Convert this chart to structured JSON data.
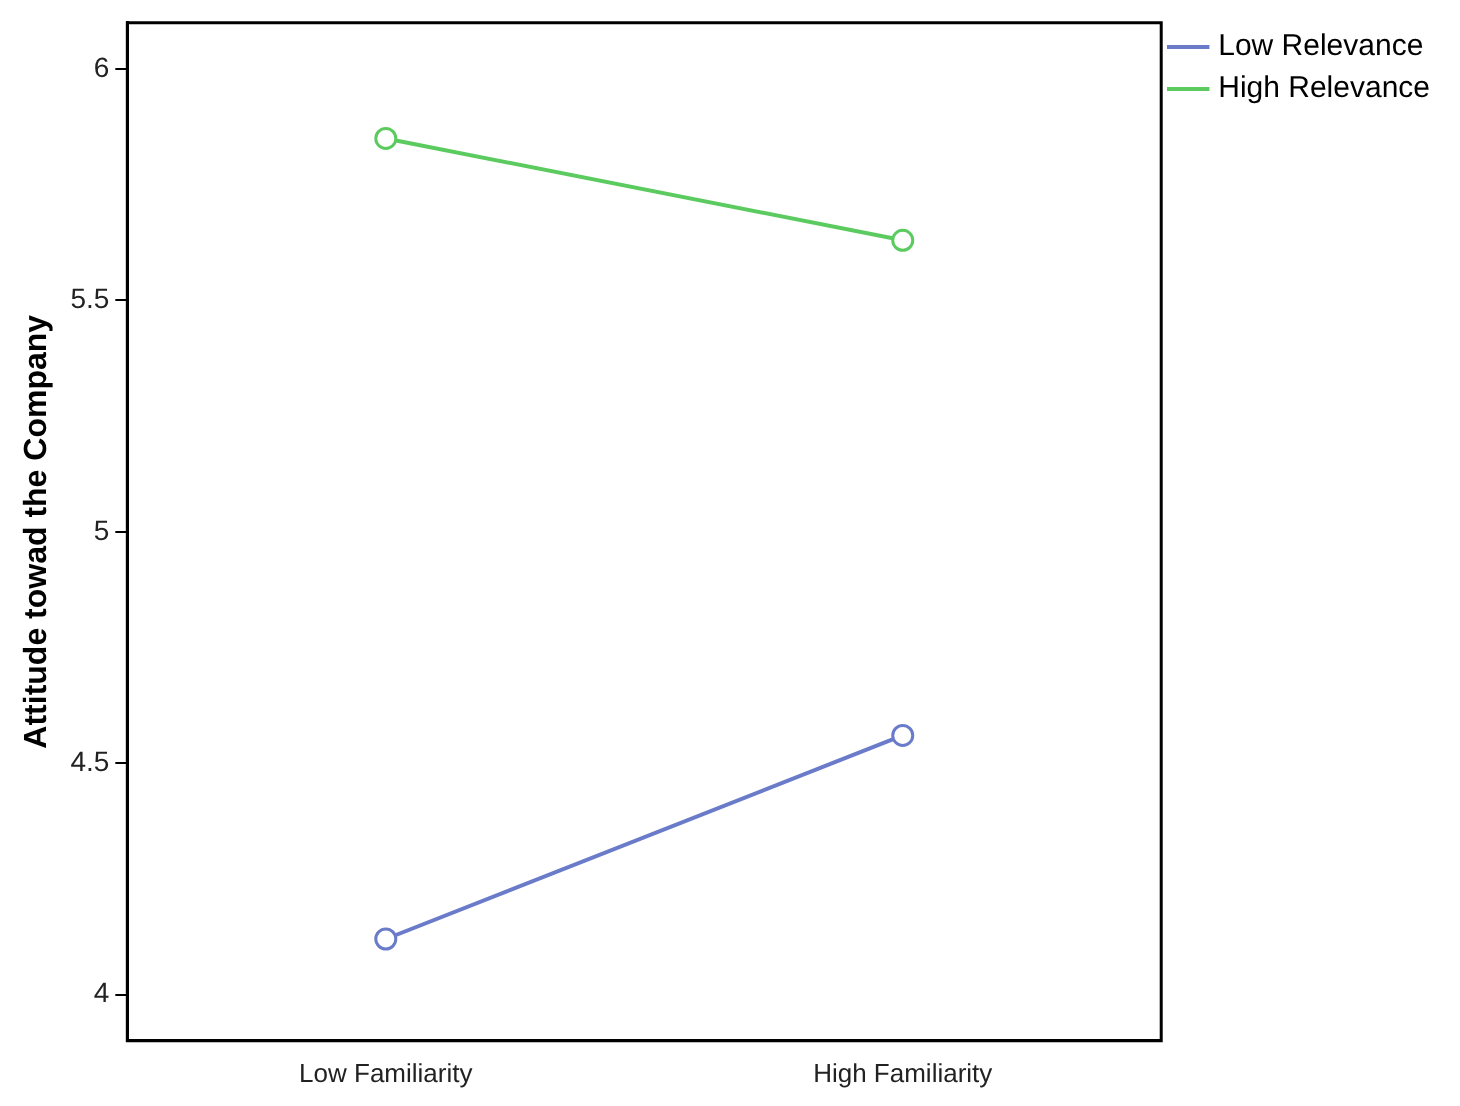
{
  "chart_data": {
    "type": "line",
    "ylabel": "Attitude towad the Company",
    "categories": [
      "Low Familiarity",
      "High Familiarity"
    ],
    "series": [
      {
        "name": "Low Relevance",
        "color": "#6a7bc9",
        "values": [
          4.12,
          4.56
        ]
      },
      {
        "name": "High Relevance",
        "color": "#5ccb5f",
        "values": [
          5.85,
          5.63
        ]
      }
    ],
    "ylim": [
      3.9,
      6.1
    ],
    "yticks": [
      {
        "value": 4,
        "label": "4"
      },
      {
        "value": 4.5,
        "label": "4.5"
      },
      {
        "value": 5,
        "label": "5"
      },
      {
        "value": 5.5,
        "label": "5.5"
      },
      {
        "value": 6,
        "label": "6"
      }
    ],
    "grid": false,
    "legend": "top right",
    "marker": "circle",
    "line_style": "solid"
  }
}
